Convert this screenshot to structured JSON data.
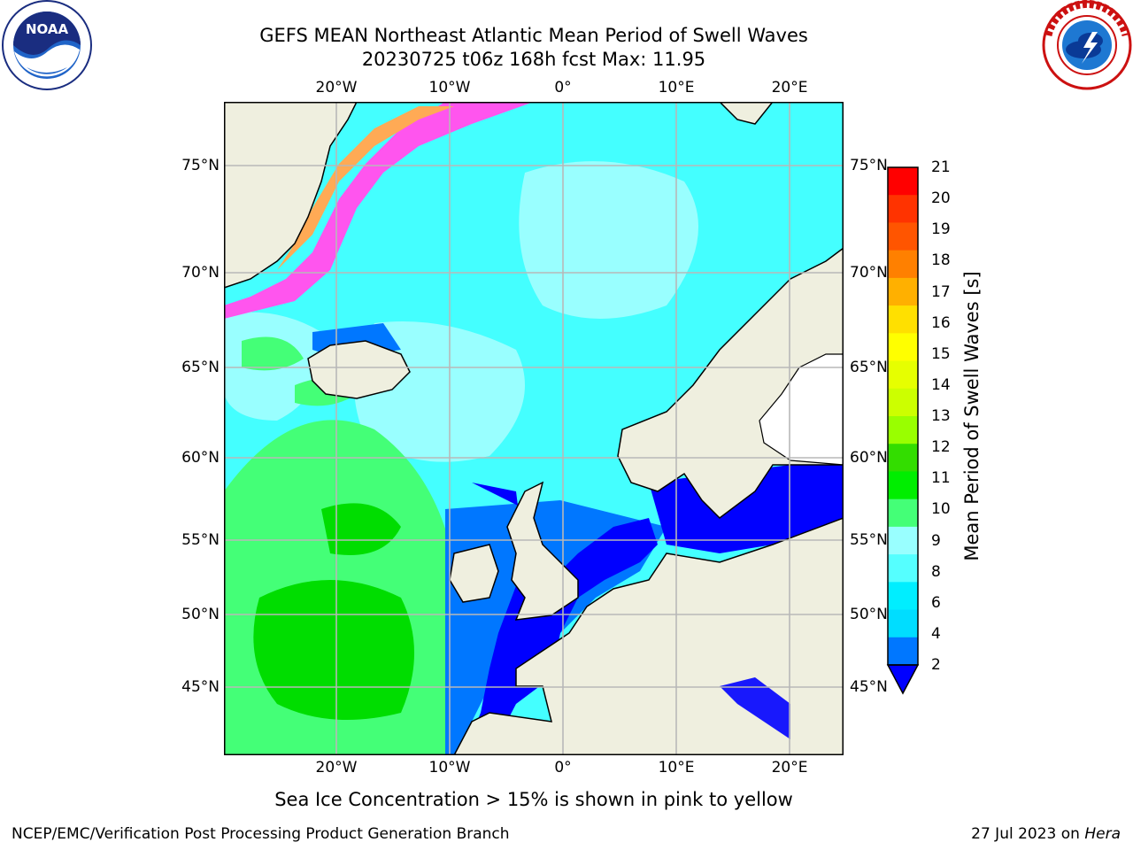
{
  "title_line1": "GEFS MEAN Northeast Atlantic Mean Period of Swell Waves",
  "title_line2": "20230725 t06z 168h fcst   Max: 11.95",
  "logos": {
    "left": "noaa-logo",
    "right": "nws-logo",
    "left_text": "NOAA",
    "right_ring_text": "NATIONAL WEATHER SERVICE"
  },
  "lat_labels": [
    "75°N",
    "70°N",
    "65°N",
    "60°N",
    "55°N",
    "50°N",
    "45°N"
  ],
  "lon_labels": [
    "20°W",
    "10°W",
    "0°",
    "10°E",
    "20°E"
  ],
  "colorbar": {
    "label": "Mean Period of Swell Waves [s]",
    "ticks": [
      "21",
      "20",
      "19",
      "18",
      "17",
      "16",
      "15",
      "14",
      "13",
      "12",
      "11",
      "10",
      "9",
      "8",
      "6",
      "4",
      "2"
    ],
    "colors_top_to_bottom": [
      "#ff0000",
      "#ff3300",
      "#ff5500",
      "#ff8000",
      "#ffb000",
      "#ffe000",
      "#ffff00",
      "#e6ff00",
      "#ccff00",
      "#99ff00",
      "#33dd00",
      "#00ee00",
      "#44ff77",
      "#99ffff",
      "#55ffff",
      "#00eeff",
      "#00ddff",
      "#0077ff"
    ],
    "extend_color": "#0000ff"
  },
  "map_colors": {
    "land": "#efefdf",
    "ocean_default": "#44ffff",
    "deep_blue": "#0000ff",
    "mid_blue": "#0077ff",
    "light_cyan": "#99ffff",
    "green": "#44ff77",
    "bright_green": "#00dd00",
    "ice_pink": "#ff55ee",
    "ice_orange": "#ffaa55",
    "grid": "#b8b8b8"
  },
  "footnote": "Sea Ice Concentration > 15% is shown in pink to yellow",
  "credit": "NCEP/EMC/Verification Post Processing Product Generation Branch",
  "date_prefix": "27 Jul 2023 on ",
  "date_machine": "Hera"
}
